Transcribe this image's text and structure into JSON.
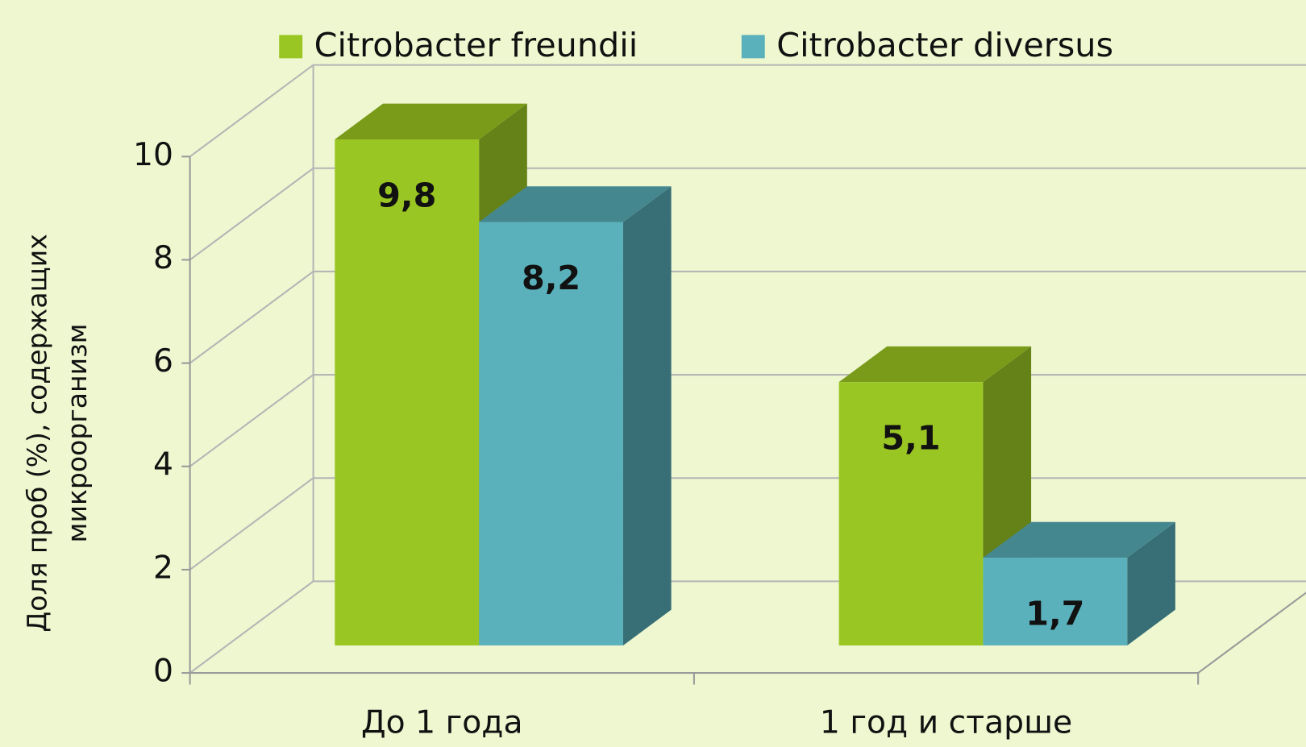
{
  "chart_data": {
    "type": "bar3d",
    "ylabel": [
      "Доля проб (%), содержащих",
      "микроорганизм"
    ],
    "categories": [
      "До 1 года",
      "1 год и старше"
    ],
    "series": [
      {
        "name": "Citrobacter freundii",
        "color": "#9ac623",
        "top_color": "#7a9b1a",
        "side_color": "#648218",
        "values": [
          9.8,
          5.1
        ],
        "value_labels": [
          "9,8",
          "5,1"
        ]
      },
      {
        "name": "Citrobacter diversus",
        "color": "#5bb1bb",
        "top_color": "#45878f",
        "side_color": "#386f76",
        "values": [
          8.2,
          1.7
        ],
        "value_labels": [
          "8,2",
          "1,7"
        ]
      }
    ],
    "ylim": [
      0,
      10
    ],
    "yticks": [
      0,
      2,
      4,
      6,
      8,
      10
    ],
    "grid": true,
    "legend": "top"
  }
}
